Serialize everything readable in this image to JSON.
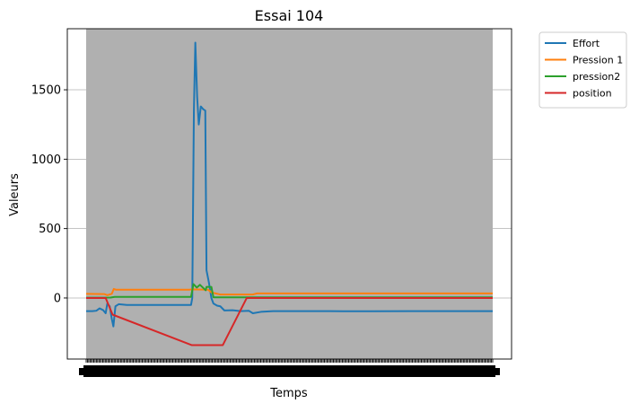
{
  "chart_data": {
    "type": "line",
    "title": "Essai 104",
    "xlabel": "Temps",
    "ylabel": "Valeurs",
    "ylim": [
      -440,
      1940
    ],
    "yticks": [
      0,
      500,
      1000,
      1500
    ],
    "ytick_labels": [
      "0",
      "500",
      "1000",
      "1500"
    ],
    "x_range": [
      0,
      100
    ],
    "x_tick_count": 320,
    "grid": "horizontal",
    "shaded_band_color": "#b0b0b0",
    "legend_position": "outside-top-right",
    "series": [
      {
        "name": "Effort",
        "color": "#1f77b4",
        "points": [
          [
            0,
            -95
          ],
          [
            1.5,
            -95
          ],
          [
            2.5,
            -92
          ],
          [
            3.3,
            -75
          ],
          [
            4.2,
            -88
          ],
          [
            4.8,
            -110
          ],
          [
            5.2,
            -40
          ],
          [
            5.8,
            -60
          ],
          [
            6.3,
            -150
          ],
          [
            6.7,
            -205
          ],
          [
            7.2,
            -60
          ],
          [
            8,
            -45
          ],
          [
            10,
            -50
          ],
          [
            14,
            -50
          ],
          [
            20,
            -50
          ],
          [
            24,
            -50
          ],
          [
            25.8,
            -50
          ],
          [
            26.1,
            0
          ],
          [
            26.5,
            1350
          ],
          [
            26.85,
            1840
          ],
          [
            27.3,
            1450
          ],
          [
            27.7,
            1250
          ],
          [
            28.2,
            1380
          ],
          [
            28.8,
            1360
          ],
          [
            29.3,
            1350
          ],
          [
            29.6,
            200
          ],
          [
            30.2,
            110
          ],
          [
            30.8,
            0
          ],
          [
            31.3,
            -40
          ],
          [
            32.2,
            -55
          ],
          [
            33,
            -60
          ],
          [
            34,
            -90
          ],
          [
            36,
            -88
          ],
          [
            38,
            -95
          ],
          [
            40,
            -92
          ],
          [
            41,
            -110
          ],
          [
            43,
            -100
          ],
          [
            46,
            -95
          ],
          [
            50,
            -95
          ],
          [
            60,
            -95
          ],
          [
            70,
            -96
          ],
          [
            80,
            -95
          ],
          [
            90,
            -95
          ],
          [
            100,
            -95
          ]
        ]
      },
      {
        "name": "Pression 1",
        "color": "#ff7f0e",
        "points": [
          [
            0,
            30
          ],
          [
            4.5,
            28
          ],
          [
            5.2,
            20
          ],
          [
            6.3,
            30
          ],
          [
            6.8,
            65
          ],
          [
            7.3,
            60
          ],
          [
            10,
            60
          ],
          [
            20,
            60
          ],
          [
            25.5,
            60
          ],
          [
            26,
            62
          ],
          [
            30,
            60
          ],
          [
            30.8,
            40
          ],
          [
            33,
            25
          ],
          [
            41,
            25
          ],
          [
            42,
            33
          ],
          [
            50,
            33
          ],
          [
            100,
            33
          ]
        ]
      },
      {
        "name": "pression2",
        "color": "#2ca02c",
        "points": [
          [
            0,
            2
          ],
          [
            6,
            3
          ],
          [
            7,
            8
          ],
          [
            10,
            8
          ],
          [
            25.8,
            8
          ],
          [
            26.4,
            100
          ],
          [
            27.2,
            75
          ],
          [
            28,
            95
          ],
          [
            29.4,
            55
          ],
          [
            29.6,
            80
          ],
          [
            30.8,
            80
          ],
          [
            31.3,
            5
          ],
          [
            33,
            5
          ],
          [
            100,
            5
          ]
        ]
      },
      {
        "name": "position",
        "color": "#d62728",
        "points": [
          [
            0,
            0
          ],
          [
            4.8,
            0
          ],
          [
            6.5,
            -120
          ],
          [
            26,
            -340
          ],
          [
            33.6,
            -340
          ],
          [
            39.5,
            0
          ],
          [
            100,
            0
          ]
        ]
      }
    ]
  }
}
